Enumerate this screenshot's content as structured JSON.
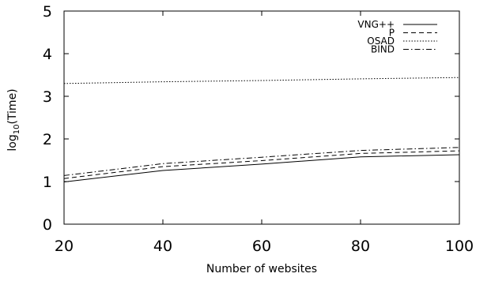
{
  "chart_data": {
    "type": "line",
    "xlabel": "Number of websites",
    "ylabel": "log10(Time)",
    "ylabel_parts": {
      "base": "log",
      "sub": "10",
      "rest": "(Time)"
    },
    "xlim": [
      20,
      100
    ],
    "ylim": [
      0,
      5
    ],
    "xticks": [
      20,
      40,
      60,
      80,
      100
    ],
    "yticks": [
      0,
      1,
      2,
      3,
      4,
      5
    ],
    "grid": false,
    "legend_position": "top-right",
    "x": [
      20,
      40,
      60,
      80,
      100
    ],
    "series": [
      {
        "name": "VNG++",
        "style": "solid",
        "values": [
          0.99,
          1.26,
          1.41,
          1.58,
          1.63
        ]
      },
      {
        "name": "P",
        "style": "dashed",
        "values": [
          1.07,
          1.35,
          1.49,
          1.66,
          1.72
        ]
      },
      {
        "name": "OSAD",
        "style": "dotted",
        "values": [
          3.3,
          3.34,
          3.37,
          3.41,
          3.44
        ]
      },
      {
        "name": "BIND",
        "style": "dashdot",
        "values": [
          1.14,
          1.42,
          1.57,
          1.73,
          1.8
        ]
      }
    ]
  }
}
